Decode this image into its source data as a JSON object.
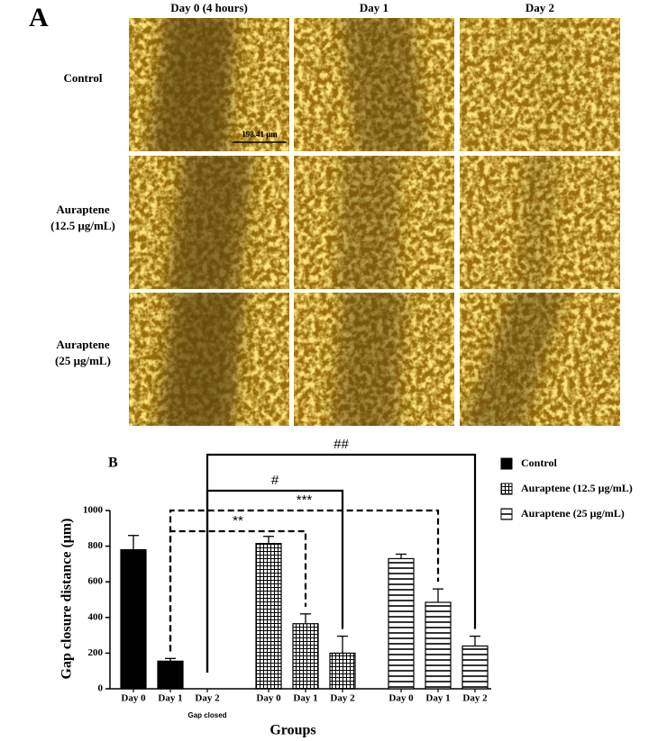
{
  "panel_a": {
    "label": "A",
    "columns": [
      "Day 0 (4 hours)",
      "Day 1",
      "Day 2"
    ],
    "rows": [
      [
        "Control"
      ],
      [
        "Auraptene",
        "(12.5 μg/mL)"
      ],
      [
        "Auraptene",
        "(25 μg/mL)"
      ]
    ],
    "scale_bar": "198.41 μm"
  },
  "chart_data": {
    "type": "bar",
    "panel_label": "B",
    "ylabel": "Gap closure distance (μm)",
    "xlabel": "Groups",
    "categories": [
      "Day 0",
      "Day 1",
      "Day 2"
    ],
    "series": [
      {
        "name": "Control",
        "color": "#000000",
        "pattern": "solid",
        "values": [
          780,
          155,
          null
        ],
        "errors": [
          80,
          15,
          null
        ]
      },
      {
        "name": "Auraptene (12.5 μg/mL)",
        "color": "#000000",
        "pattern": "grid",
        "values": [
          815,
          365,
          200
        ],
        "errors": [
          40,
          55,
          95
        ]
      },
      {
        "name": "Auraptene (25 μg/mL)",
        "color": "#000000",
        "pattern": "horizontal",
        "values": [
          730,
          485,
          240
        ],
        "errors": [
          25,
          75,
          55
        ]
      }
    ],
    "note": {
      "text": "Gap closed",
      "series": 0,
      "category": 2
    },
    "brackets": [
      {
        "text": "##",
        "style": "solid",
        "from": [
          0,
          2
        ],
        "to": [
          2,
          2
        ]
      },
      {
        "text": "#",
        "style": "solid",
        "from": [
          0,
          2
        ],
        "to": [
          1,
          2
        ]
      },
      {
        "text": "***",
        "style": "dashed",
        "from": [
          0,
          1
        ],
        "to": [
          2,
          1
        ]
      },
      {
        "text": "**",
        "style": "dashed",
        "from": [
          0,
          1
        ],
        "to": [
          1,
          1
        ]
      }
    ],
    "ylim": [
      0,
      1000
    ],
    "yticks": [
      0,
      200,
      400,
      600,
      800,
      1000
    ],
    "legend": "right"
  }
}
